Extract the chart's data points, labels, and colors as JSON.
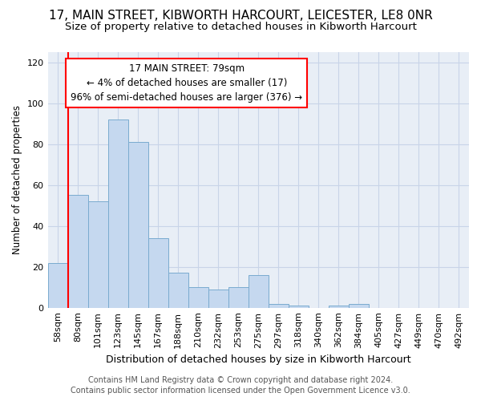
{
  "title1": "17, MAIN STREET, KIBWORTH HARCOURT, LEICESTER, LE8 0NR",
  "title2": "Size of property relative to detached houses in Kibworth Harcourt",
  "xlabel": "Distribution of detached houses by size in Kibworth Harcourt",
  "ylabel": "Number of detached properties",
  "categories": [
    "58sqm",
    "80sqm",
    "101sqm",
    "123sqm",
    "145sqm",
    "167sqm",
    "188sqm",
    "210sqm",
    "232sqm",
    "253sqm",
    "275sqm",
    "297sqm",
    "318sqm",
    "340sqm",
    "362sqm",
    "384sqm",
    "405sqm",
    "427sqm",
    "449sqm",
    "470sqm",
    "492sqm"
  ],
  "values": [
    22,
    55,
    52,
    92,
    81,
    34,
    17,
    10,
    9,
    10,
    16,
    2,
    1,
    0,
    1,
    2,
    0,
    0,
    0,
    0,
    0
  ],
  "bar_color": "#c5d8ef",
  "bar_edge_color": "#7aabcf",
  "annotation_box_text": "17 MAIN STREET: 79sqm\n← 4% of detached houses are smaller (17)\n96% of semi-detached houses are larger (376) →",
  "ylim": [
    0,
    125
  ],
  "yticks": [
    0,
    20,
    40,
    60,
    80,
    100,
    120
  ],
  "grid_color": "#c8d4e8",
  "plot_bg_color": "#e8eef6",
  "footer1": "Contains HM Land Registry data © Crown copyright and database right 2024.",
  "footer2": "Contains public sector information licensed under the Open Government Licence v3.0.",
  "title1_fontsize": 11,
  "title2_fontsize": 9.5,
  "xlabel_fontsize": 9,
  "ylabel_fontsize": 8.5,
  "tick_fontsize": 8,
  "footer_fontsize": 7,
  "annot_fontsize": 8.5,
  "red_line_x": 0.5
}
